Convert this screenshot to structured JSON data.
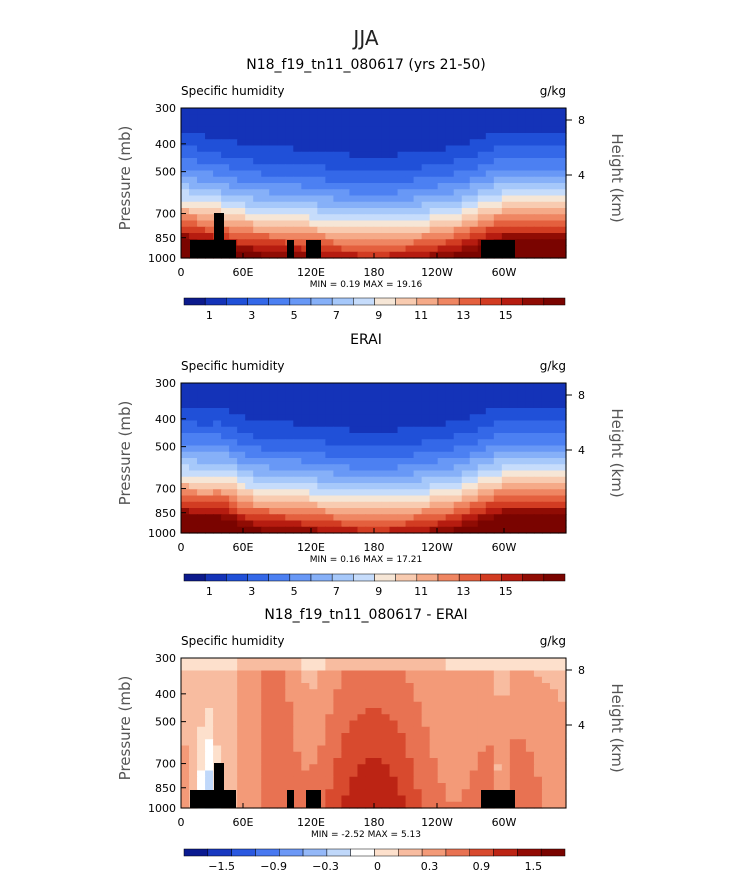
{
  "figure_title": "JJA",
  "chart_data": [
    {
      "type": "heatmap",
      "title": "N18_f19_tn11_080617 (yrs 21-50)",
      "variable": "Specific humidity",
      "units": "g/kg",
      "xlabel": "",
      "ylabel": "Pressure (mb)",
      "ylabel_right": "Height (km)",
      "x_ticks": [
        "0",
        "60E",
        "120E",
        "180",
        "120W",
        "60W"
      ],
      "y_ticks": [
        "300",
        "400",
        "500",
        "700",
        "850",
        "1000"
      ],
      "y_ticks_right": [
        "8",
        "4"
      ],
      "min_label": "MIN =",
      "min_value": "0.19",
      "max_label": "MAX =",
      "max_value": "19.16",
      "colorbar_labels": [
        "1",
        "3",
        "5",
        "7",
        "9",
        "11",
        "13",
        "15"
      ],
      "levels": [
        0,
        1,
        2,
        3,
        4,
        5,
        6,
        7,
        8,
        9,
        10,
        11,
        12,
        13,
        14,
        15,
        16
      ]
    },
    {
      "type": "heatmap",
      "title": "ERAI",
      "variable": "Specific humidity",
      "units": "g/kg",
      "xlabel": "",
      "ylabel": "Pressure (mb)",
      "ylabel_right": "Height (km)",
      "x_ticks": [
        "0",
        "60E",
        "120E",
        "180",
        "120W",
        "60W"
      ],
      "y_ticks": [
        "300",
        "400",
        "500",
        "700",
        "850",
        "1000"
      ],
      "y_ticks_right": [
        "8",
        "4"
      ],
      "min_label": "MIN =",
      "min_value": "0.16",
      "max_label": "MAX =",
      "max_value": "17.21",
      "colorbar_labels": [
        "1",
        "3",
        "5",
        "7",
        "9",
        "11",
        "13",
        "15"
      ],
      "levels": [
        0,
        1,
        2,
        3,
        4,
        5,
        6,
        7,
        8,
        9,
        10,
        11,
        12,
        13,
        14,
        15,
        16
      ]
    },
    {
      "type": "heatmap",
      "title": "N18_f19_tn11_080617 - ERAI",
      "variable": "Specific humidity",
      "units": "g/kg",
      "xlabel": "",
      "ylabel": "Pressure (mb)",
      "ylabel_right": "Height (km)",
      "x_ticks": [
        "0",
        "60E",
        "120E",
        "180",
        "120W",
        "60W"
      ],
      "y_ticks": [
        "300",
        "400",
        "500",
        "700",
        "850",
        "1000"
      ],
      "y_ticks_right": [
        "8",
        "4"
      ],
      "min_label": "MIN =",
      "min_value": "-2.52",
      "max_label": "MAX =",
      "max_value": "5.13",
      "colorbar_labels": [
        "−1.5",
        "−0.9",
        "−0.3",
        "0",
        "0.3",
        "0.9",
        "1.5"
      ],
      "levels": [
        -1.8,
        -1.5,
        -1.2,
        -0.9,
        -0.6,
        -0.3,
        -0.1,
        0,
        0.1,
        0.3,
        0.6,
        0.9,
        1.2,
        1.5,
        1.8
      ]
    }
  ],
  "palette": [
    "#0c1a8c",
    "#1433b8",
    "#2050d8",
    "#3468e8",
    "#4c80f2",
    "#6898f6",
    "#86b0f8",
    "#a6c8fa",
    "#c6dcfb",
    "#f6e6d6",
    "#f8cbb0",
    "#f5aa88",
    "#ef8662",
    "#e4603e",
    "#d23c22",
    "#b61c10",
    "#900c04",
    "#7a0400"
  ],
  "diff_palette": [
    "#0a1a90",
    "#1838c0",
    "#2a58e0",
    "#4878f0",
    "#6c98f6",
    "#94b8f8",
    "#c0d8fa",
    "#ffffff",
    "#fde0cc",
    "#f8bca0",
    "#f39a78",
    "#e87252",
    "#d84a2e",
    "#bc2414",
    "#920a04",
    "#7a0400"
  ]
}
